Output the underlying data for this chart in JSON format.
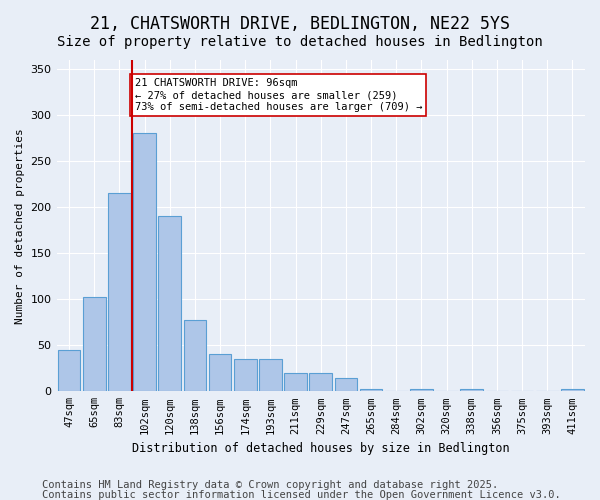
{
  "title": "21, CHATSWORTH DRIVE, BEDLINGTON, NE22 5YS",
  "subtitle": "Size of property relative to detached houses in Bedlington",
  "xlabel": "Distribution of detached houses by size in Bedlington",
  "ylabel": "Number of detached properties",
  "categories": [
    "47sqm",
    "65sqm",
    "83sqm",
    "102sqm",
    "120sqm",
    "138sqm",
    "156sqm",
    "174sqm",
    "193sqm",
    "211sqm",
    "229sqm",
    "247sqm",
    "265sqm",
    "284sqm",
    "302sqm",
    "320sqm",
    "338sqm",
    "356sqm",
    "375sqm",
    "393sqm",
    "411sqm"
  ],
  "values": [
    45,
    102,
    215,
    281,
    190,
    78,
    40,
    35,
    35,
    20,
    20,
    15,
    3,
    0,
    3,
    0,
    2,
    0,
    0,
    0,
    2
  ],
  "bar_color": "#aec6e8",
  "bar_edge_color": "#5a9fd4",
  "red_line_index": 3,
  "red_line_color": "#cc0000",
  "annotation_text": "21 CHATSWORTH DRIVE: 96sqm\n← 27% of detached houses are smaller (259)\n73% of semi-detached houses are larger (709) →",
  "annotation_box_color": "#ffffff",
  "annotation_box_edge": "#cc0000",
  "ylim": [
    0,
    360
  ],
  "yticks": [
    0,
    50,
    100,
    150,
    200,
    250,
    300,
    350
  ],
  "background_color": "#e8eef7",
  "grid_color": "#ffffff",
  "footer_line1": "Contains HM Land Registry data © Crown copyright and database right 2025.",
  "footer_line2": "Contains public sector information licensed under the Open Government Licence v3.0.",
  "title_fontsize": 12,
  "subtitle_fontsize": 10,
  "footer_fontsize": 7.5
}
